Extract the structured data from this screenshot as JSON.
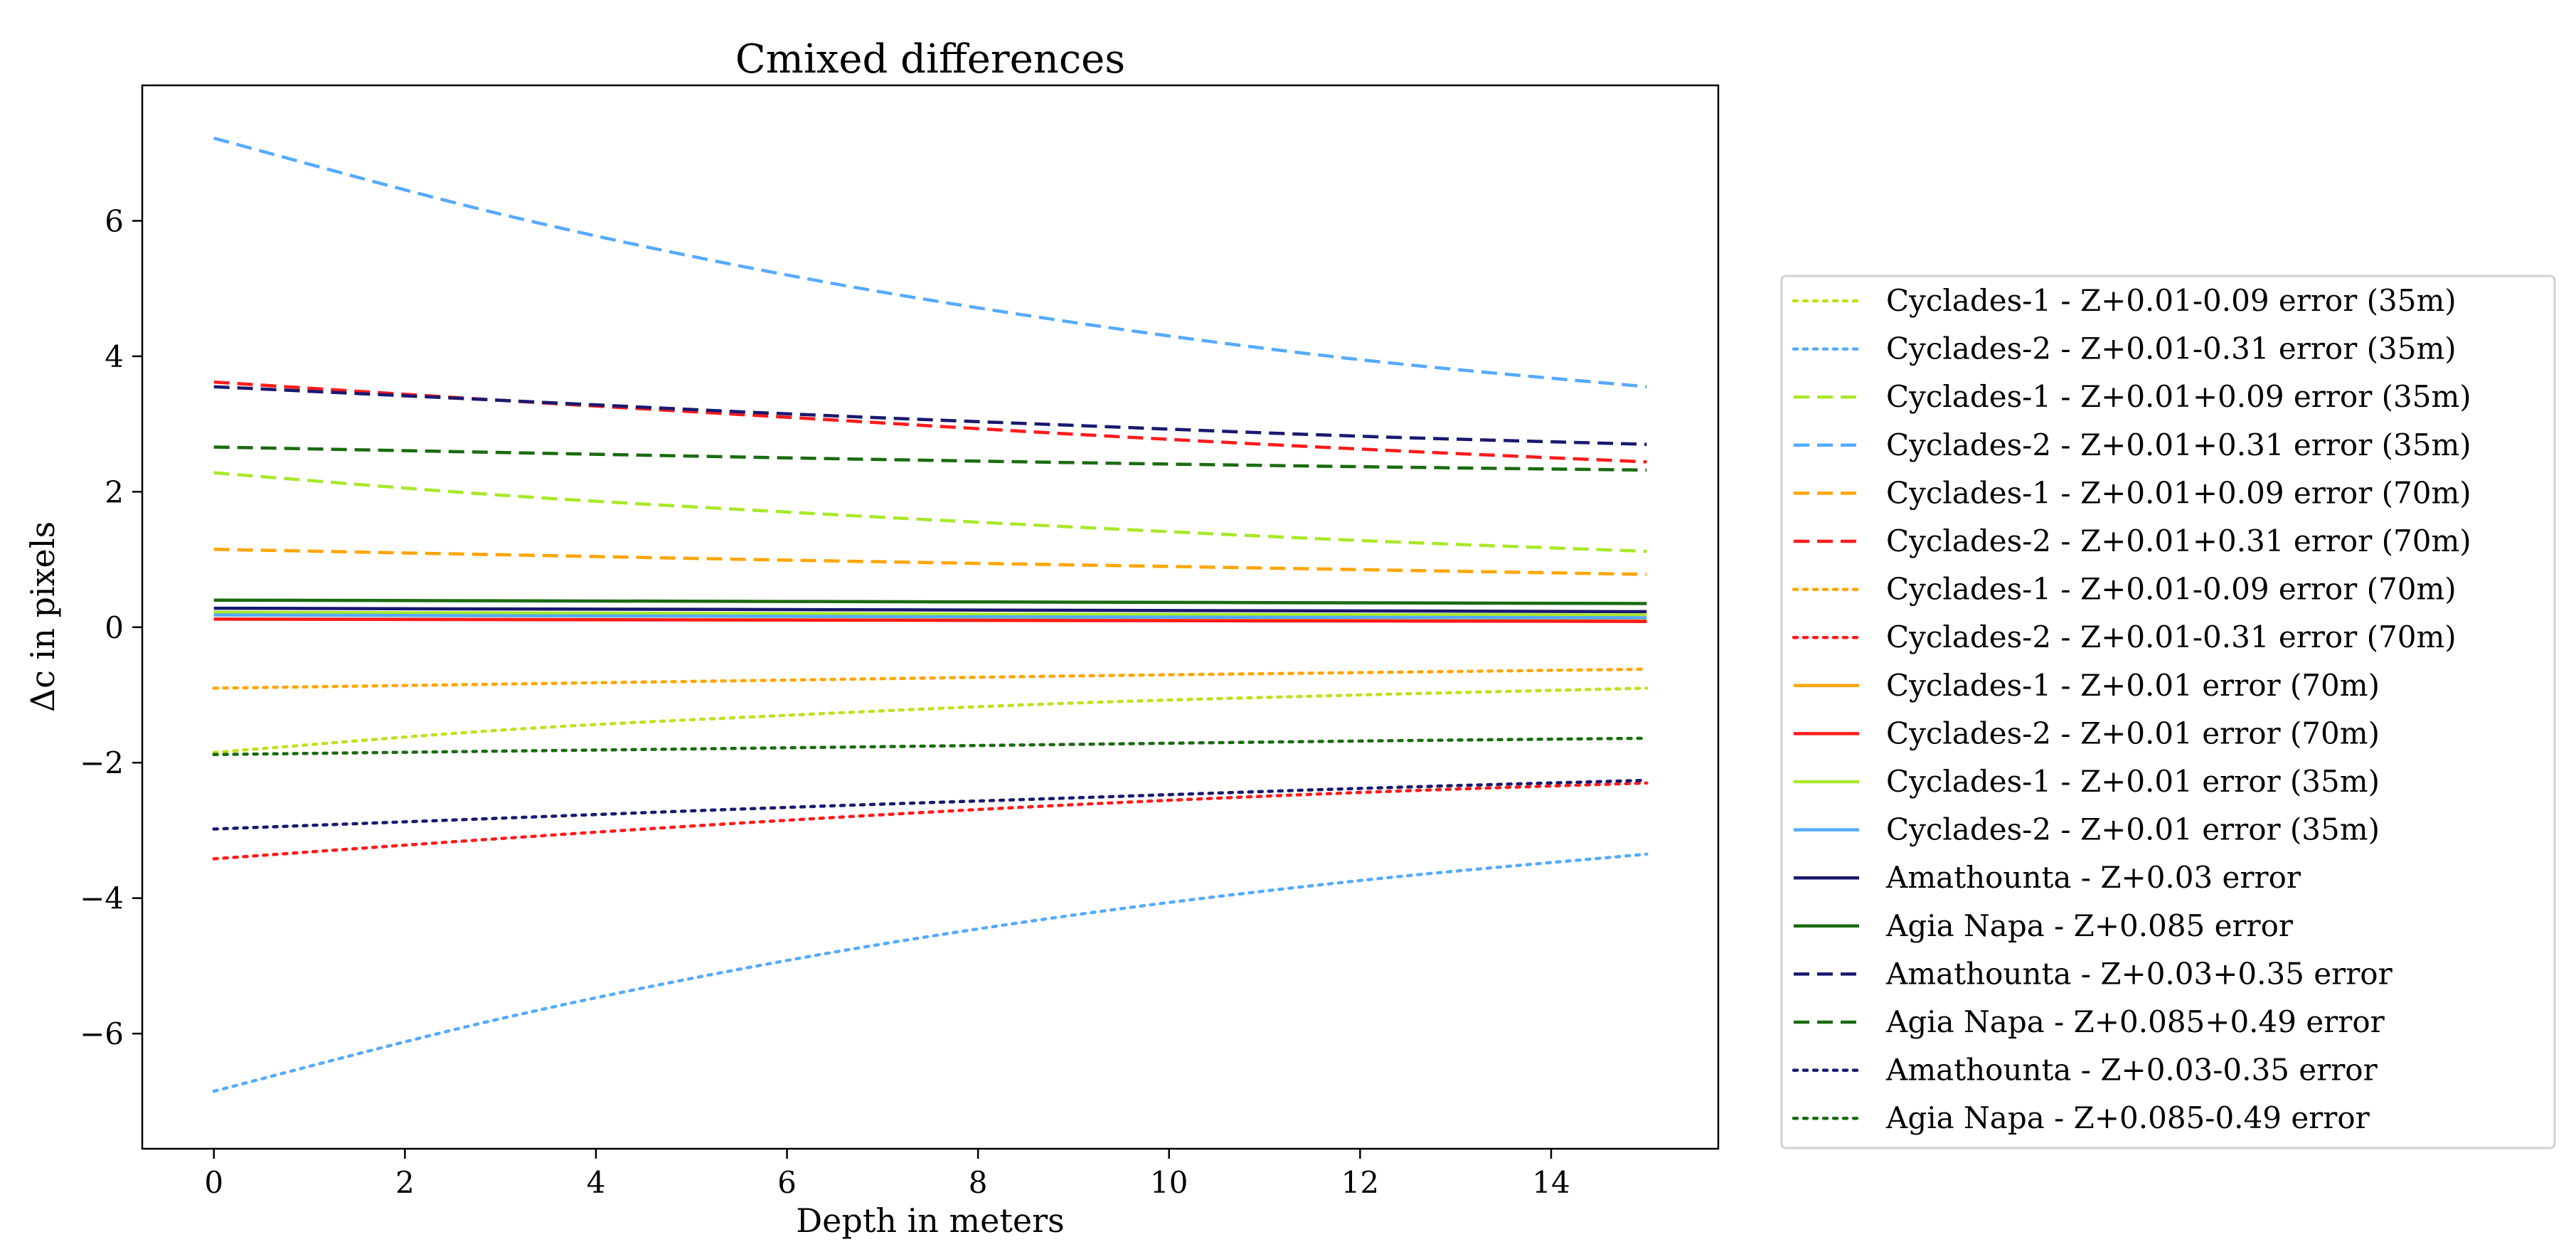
{
  "chart_data": {
    "type": "line",
    "title": "Cmixed differences",
    "xlabel": "Depth in meters",
    "ylabel": "Δc in pixels",
    "xlim": [
      -0.75,
      15.75
    ],
    "ylim": [
      -7.7,
      8.0
    ],
    "xticks": [
      0,
      2,
      4,
      6,
      8,
      10,
      12,
      14
    ],
    "yticks": [
      -6,
      -4,
      -2,
      0,
      2,
      4,
      6
    ],
    "ytick_labels": [
      "−6",
      "−4",
      "−2",
      "0",
      "2",
      "4",
      "6"
    ],
    "grid": false,
    "legend_position": "right",
    "x": [
      0,
      3,
      6,
      9,
      12,
      15
    ],
    "series": [
      {
        "name": "Cyclades-1 - Z+0.01-0.09 error (35m)",
        "color": "#c0e020",
        "style": "dotted",
        "values": [
          -1.85,
          -1.52,
          -1.3,
          -1.12,
          -1.0,
          -0.9
        ]
      },
      {
        "name": "Cyclades-2 - Z+0.01-0.31 error (35m)",
        "color": "#55aaff",
        "style": "dotted",
        "values": [
          -6.85,
          -5.78,
          -4.92,
          -4.25,
          -3.74,
          -3.35
        ]
      },
      {
        "name": "Cyclades-1 - Z+0.01+0.09 error (35m)",
        "color": "#a8e82a",
        "style": "dashed",
        "values": [
          2.28,
          1.95,
          1.7,
          1.48,
          1.28,
          1.12
        ]
      },
      {
        "name": "Cyclades-2 - Z+0.01+0.31 error (35m)",
        "color": "#55aaff",
        "style": "dashed",
        "values": [
          7.22,
          6.1,
          5.2,
          4.5,
          3.95,
          3.55
        ]
      },
      {
        "name": "Cyclades-1 - Z+0.01+0.09 error (70m)",
        "color": "#ffa500",
        "style": "dashed",
        "values": [
          1.15,
          1.07,
          0.99,
          0.92,
          0.85,
          0.78
        ]
      },
      {
        "name": "Cyclades-2 - Z+0.01+0.31 error (70m)",
        "color": "#ff1a1a",
        "style": "dashed",
        "values": [
          3.62,
          3.35,
          3.1,
          2.85,
          2.63,
          2.44
        ]
      },
      {
        "name": "Cyclades-1 - Z+0.01-0.09 error (70m)",
        "color": "#ffa500",
        "style": "dotted",
        "values": [
          -0.9,
          -0.84,
          -0.78,
          -0.72,
          -0.67,
          -0.62
        ]
      },
      {
        "name": "Cyclades-2 - Z+0.01-0.31 error (70m)",
        "color": "#ff1a1a",
        "style": "dotted",
        "values": [
          -3.42,
          -3.12,
          -2.85,
          -2.62,
          -2.44,
          -2.3
        ]
      },
      {
        "name": "Cyclades-1 - Z+0.01 error (70m)",
        "color": "#ffa500",
        "style": "solid",
        "values": [
          0.12,
          0.115,
          0.11,
          0.105,
          0.1,
          0.095
        ]
      },
      {
        "name": "Cyclades-2 - Z+0.01 error (70m)",
        "color": "#ff1a1a",
        "style": "solid",
        "values": [
          0.12,
          0.112,
          0.105,
          0.098,
          0.092,
          0.085
        ]
      },
      {
        "name": "Cyclades-1 - Z+0.01 error (35m)",
        "color": "#a8e82a",
        "style": "solid",
        "values": [
          0.22,
          0.21,
          0.2,
          0.19,
          0.185,
          0.18
        ]
      },
      {
        "name": "Cyclades-2 - Z+0.01 error (35m)",
        "color": "#55aaff",
        "style": "solid",
        "values": [
          0.18,
          0.17,
          0.16,
          0.15,
          0.145,
          0.14
        ]
      },
      {
        "name": "Amathounta - Z+0.03 error",
        "color": "#191970",
        "style": "solid",
        "values": [
          0.28,
          0.27,
          0.26,
          0.25,
          0.24,
          0.23
        ]
      },
      {
        "name": "Agia Napa - Z+0.085 error",
        "color": "#1a6b10",
        "style": "solid",
        "values": [
          0.4,
          0.39,
          0.38,
          0.37,
          0.36,
          0.35
        ]
      },
      {
        "name": "Amathounta - Z+0.03+0.35 error",
        "color": "#191970",
        "style": "dashed",
        "values": [
          3.55,
          3.35,
          3.15,
          2.98,
          2.82,
          2.7
        ]
      },
      {
        "name": "Agia Napa - Z+0.085+0.49 error",
        "color": "#1a6b10",
        "style": "dashed",
        "values": [
          2.66,
          2.58,
          2.5,
          2.43,
          2.37,
          2.32
        ]
      },
      {
        "name": "Amathounta - Z+0.03-0.35 error",
        "color": "#191970",
        "style": "dotted",
        "values": [
          -2.98,
          -2.82,
          -2.66,
          -2.52,
          -2.38,
          -2.26
        ]
      },
      {
        "name": "Agia Napa - Z+0.085-0.49 error",
        "color": "#1a6b10",
        "style": "dotted",
        "values": [
          -1.88,
          -1.83,
          -1.78,
          -1.73,
          -1.68,
          -1.64
        ]
      }
    ]
  }
}
